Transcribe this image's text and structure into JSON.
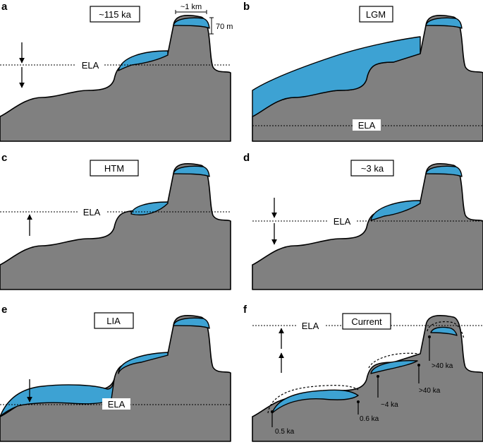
{
  "panels": [
    {
      "letter": "a",
      "period": "~115 ka",
      "ela": "ELA"
    },
    {
      "letter": "b",
      "period": "LGM",
      "ela": "ELA"
    },
    {
      "letter": "c",
      "period": "HTM",
      "ela": "ELA"
    },
    {
      "letter": "d",
      "period": "~3 ka",
      "ela": "ELA"
    },
    {
      "letter": "e",
      "period": "LIA",
      "ela": "ELA"
    },
    {
      "letter": "f",
      "period": "Current",
      "ela": "ELA"
    }
  ],
  "scale": {
    "width": "~1 km",
    "height": "70 m"
  },
  "ages": {
    "a1": "0.5 ka",
    "a2": "0.6 ka",
    "a3": "~4 ka",
    "a4": ">40 ka",
    "a5": ">40 ka"
  },
  "colors": {
    "terrain": "#808080",
    "ice": "#3da2d3"
  }
}
